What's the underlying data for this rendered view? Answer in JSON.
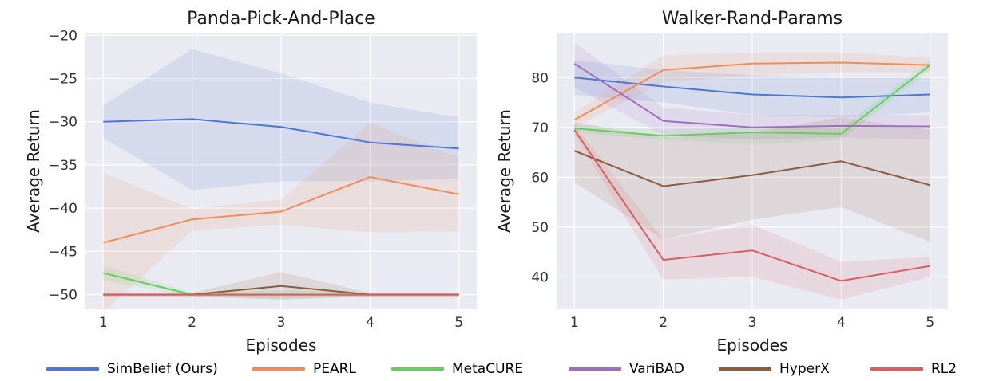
{
  "figure": {
    "legend": [
      {
        "name": "SimBelief (Ours)",
        "color": "#4a78d4"
      },
      {
        "name": "PEARL",
        "color": "#ef8d55"
      },
      {
        "name": "MetaCURE",
        "color": "#67cd5c"
      },
      {
        "name": "VariBAD",
        "color": "#9d6fc0"
      },
      {
        "name": "HyperX",
        "color": "#8c5c3c"
      },
      {
        "name": "RL2",
        "color": "#d95f5f"
      }
    ]
  },
  "chart_data": [
    {
      "type": "line",
      "title": "Panda-Pick-And-Place",
      "xlabel": "Episodes",
      "ylabel": "Average Return",
      "x": [
        1,
        2,
        3,
        4,
        5
      ],
      "xticks": [
        "1",
        "2",
        "3",
        "4",
        "5"
      ],
      "yticks": [
        "−20",
        "−25",
        "−30",
        "−35",
        "−40",
        "−45",
        "−50"
      ],
      "ytick_values": [
        -20,
        -25,
        -30,
        -35,
        -40,
        -45,
        -50
      ],
      "xlim": [
        0.8,
        5.2
      ],
      "ylim": [
        -51.7,
        -19.7
      ],
      "grid": true,
      "series": [
        {
          "name": "SimBelief (Ours)",
          "color": "#4a78d4",
          "values": [
            -30.0,
            -29.7,
            -30.6,
            -32.4,
            -33.1
          ],
          "lower": [
            -31.9,
            -37.9,
            -36.9,
            -36.9,
            -36.6
          ],
          "upper": [
            -28.1,
            -21.6,
            -24.4,
            -27.8,
            -29.5
          ]
        },
        {
          "name": "PEARL",
          "color": "#ef8d55",
          "values": [
            -44.0,
            -41.3,
            -40.4,
            -36.4,
            -38.4
          ],
          "lower": [
            -52.1,
            -42.6,
            -41.9,
            -42.8,
            -42.7
          ],
          "upper": [
            -35.9,
            -40.1,
            -39.0,
            -30.1,
            -34.2
          ]
        },
        {
          "name": "MetaCURE",
          "color": "#67cd5c",
          "values": [
            -47.5,
            -50.0,
            -50.0,
            -50.0,
            -50.0
          ],
          "lower": [
            -48.4,
            -50.2,
            -50.5,
            -50.2,
            -50.2
          ],
          "upper": [
            -46.6,
            -49.8,
            -49.5,
            -49.8,
            -49.8
          ]
        },
        {
          "name": "HyperX",
          "color": "#8c5c3c",
          "values": [
            -50.0,
            -50.0,
            -49.0,
            -50.0,
            -50.0
          ],
          "lower": [
            -50.2,
            -50.2,
            -50.6,
            -50.2,
            -50.2
          ],
          "upper": [
            -49.8,
            -49.8,
            -47.4,
            -49.8,
            -49.8
          ]
        },
        {
          "name": "RL2",
          "color": "#d95f5f",
          "values": [
            -50.0,
            -50.0,
            -50.0,
            -50.0,
            -50.0
          ],
          "lower": [
            -50.2,
            -50.2,
            -50.2,
            -50.2,
            -50.2
          ],
          "upper": [
            -49.8,
            -49.8,
            -49.8,
            -49.8,
            -49.8
          ]
        }
      ]
    },
    {
      "type": "line",
      "title": "Walker-Rand-Params",
      "xlabel": "Episodes",
      "ylabel": "Average Return",
      "x": [
        1,
        2,
        3,
        4,
        5
      ],
      "xticks": [
        "1",
        "2",
        "3",
        "4",
        "5"
      ],
      "yticks": [
        "40",
        "50",
        "60",
        "70",
        "80"
      ],
      "ytick_values": [
        40,
        50,
        60,
        70,
        80
      ],
      "xlim": [
        0.8,
        5.2
      ],
      "ylim": [
        33.5,
        89.0
      ],
      "grid": true,
      "series": [
        {
          "name": "SimBelief (Ours)",
          "color": "#4a78d4",
          "values": [
            80.0,
            78.2,
            76.6,
            76.0,
            76.6
          ],
          "lower": [
            76.5,
            75.0,
            72.5,
            72.0,
            73.0
          ],
          "upper": [
            83.5,
            81.5,
            80.5,
            80.0,
            80.0
          ]
        },
        {
          "name": "PEARL",
          "color": "#ef8d55",
          "values": [
            71.5,
            81.5,
            82.8,
            83.0,
            82.5
          ],
          "lower": [
            70.0,
            79.0,
            80.5,
            81.0,
            81.0
          ],
          "upper": [
            73.0,
            84.5,
            85.0,
            85.0,
            84.0
          ]
        },
        {
          "name": "MetaCURE",
          "color": "#67cd5c",
          "values": [
            69.8,
            68.3,
            69.0,
            68.7,
            82.5
          ],
          "lower": [
            69.0,
            67.5,
            66.5,
            67.5,
            81.5
          ],
          "upper": [
            70.5,
            69.5,
            70.0,
            70.0,
            83.5
          ]
        },
        {
          "name": "VariBAD",
          "color": "#9d6fc0",
          "values": [
            82.8,
            71.3,
            70.0,
            70.3,
            70.2
          ],
          "lower": [
            78.0,
            68.5,
            67.5,
            68.0,
            67.5
          ],
          "upper": [
            87.0,
            74.0,
            72.5,
            72.5,
            72.5
          ]
        },
        {
          "name": "HyperX",
          "color": "#8c5c3c",
          "values": [
            65.3,
            58.2,
            60.4,
            63.2,
            58.4
          ],
          "lower": [
            59.0,
            47.5,
            51.5,
            54.0,
            47.0
          ],
          "upper": [
            71.0,
            68.0,
            69.0,
            72.0,
            69.5
          ]
        },
        {
          "name": "RL2",
          "color": "#d95f5f",
          "values": [
            69.5,
            43.4,
            45.3,
            39.2,
            42.2
          ],
          "lower": [
            68.5,
            39.5,
            40.0,
            35.5,
            40.0
          ],
          "upper": [
            70.5,
            47.5,
            50.5,
            43.0,
            44.0
          ]
        }
      ]
    }
  ]
}
